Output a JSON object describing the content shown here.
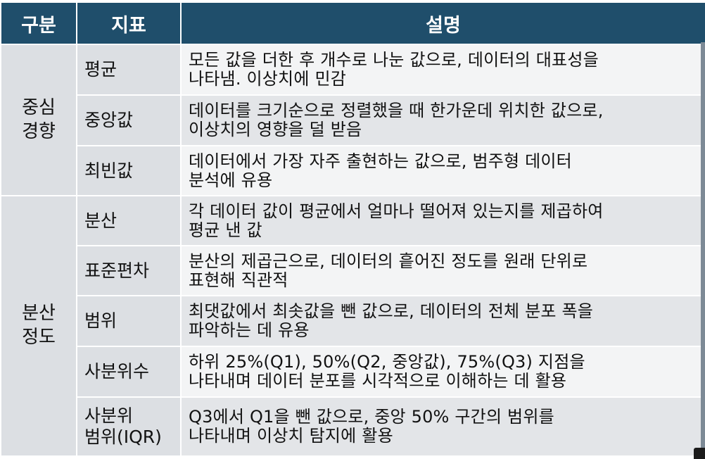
{
  "headers": {
    "category": "구분",
    "indicator": "지표",
    "description": "설명"
  },
  "groups": [
    {
      "name_lines": [
        "중심",
        "경향"
      ]
    },
    {
      "name_lines": [
        "분산",
        "정도"
      ]
    }
  ],
  "rows": [
    {
      "indicator_lines": [
        "평균"
      ],
      "description_lines": [
        "모든 값을 더한 후 개수로 나눈 값으로, 데이터의 대표성을",
        "나타냄. 이상치에 민감"
      ]
    },
    {
      "indicator_lines": [
        "중앙값"
      ],
      "description_lines": [
        "데이터를 크기순으로 정렬했을 때 한가운데 위치한 값으로,",
        "이상치의 영향을 덜 받음"
      ]
    },
    {
      "indicator_lines": [
        "최빈값"
      ],
      "description_lines": [
        "데이터에서 가장 자주 출현하는 값으로, 범주형 데이터",
        "분석에 유용"
      ]
    },
    {
      "indicator_lines": [
        "분산"
      ],
      "description_lines": [
        "각 데이터 값이 평균에서 얼마나 떨어져 있는지를 제곱하여",
        "평균 낸 값"
      ]
    },
    {
      "indicator_lines": [
        "표준편차"
      ],
      "description_lines": [
        "분산의 제곱근으로, 데이터의 흩어진 정도를 원래 단위로",
        "표현해 직관적"
      ]
    },
    {
      "indicator_lines": [
        "범위"
      ],
      "description_lines": [
        "최댓값에서 최솟값을 뺀 값으로, 데이터의 전체 분포 폭을",
        "파악하는 데 유용"
      ]
    },
    {
      "indicator_lines": [
        "사분위수"
      ],
      "description_lines": [
        "하위 25%(Q1), 50%(Q2, 중앙값), 75%(Q3) 지점을",
        "나타내며 데이터 분포를 시각적으로 이해하는 데 활용"
      ]
    },
    {
      "indicator_lines": [
        "사분위",
        "범위(IQR)"
      ],
      "description_lines": [
        "Q3에서 Q1을 뺀 값으로, 중앙 50% 구간의 범위를",
        "나타내며 이상치 탐지에 활용"
      ]
    }
  ],
  "colors": {
    "header_bg": "#1f4e6b",
    "header_text": "#ffffff",
    "label_bg": "#dcdfe3",
    "row_shade": "#e3e5e8",
    "row_light": "#f3f4f5"
  }
}
